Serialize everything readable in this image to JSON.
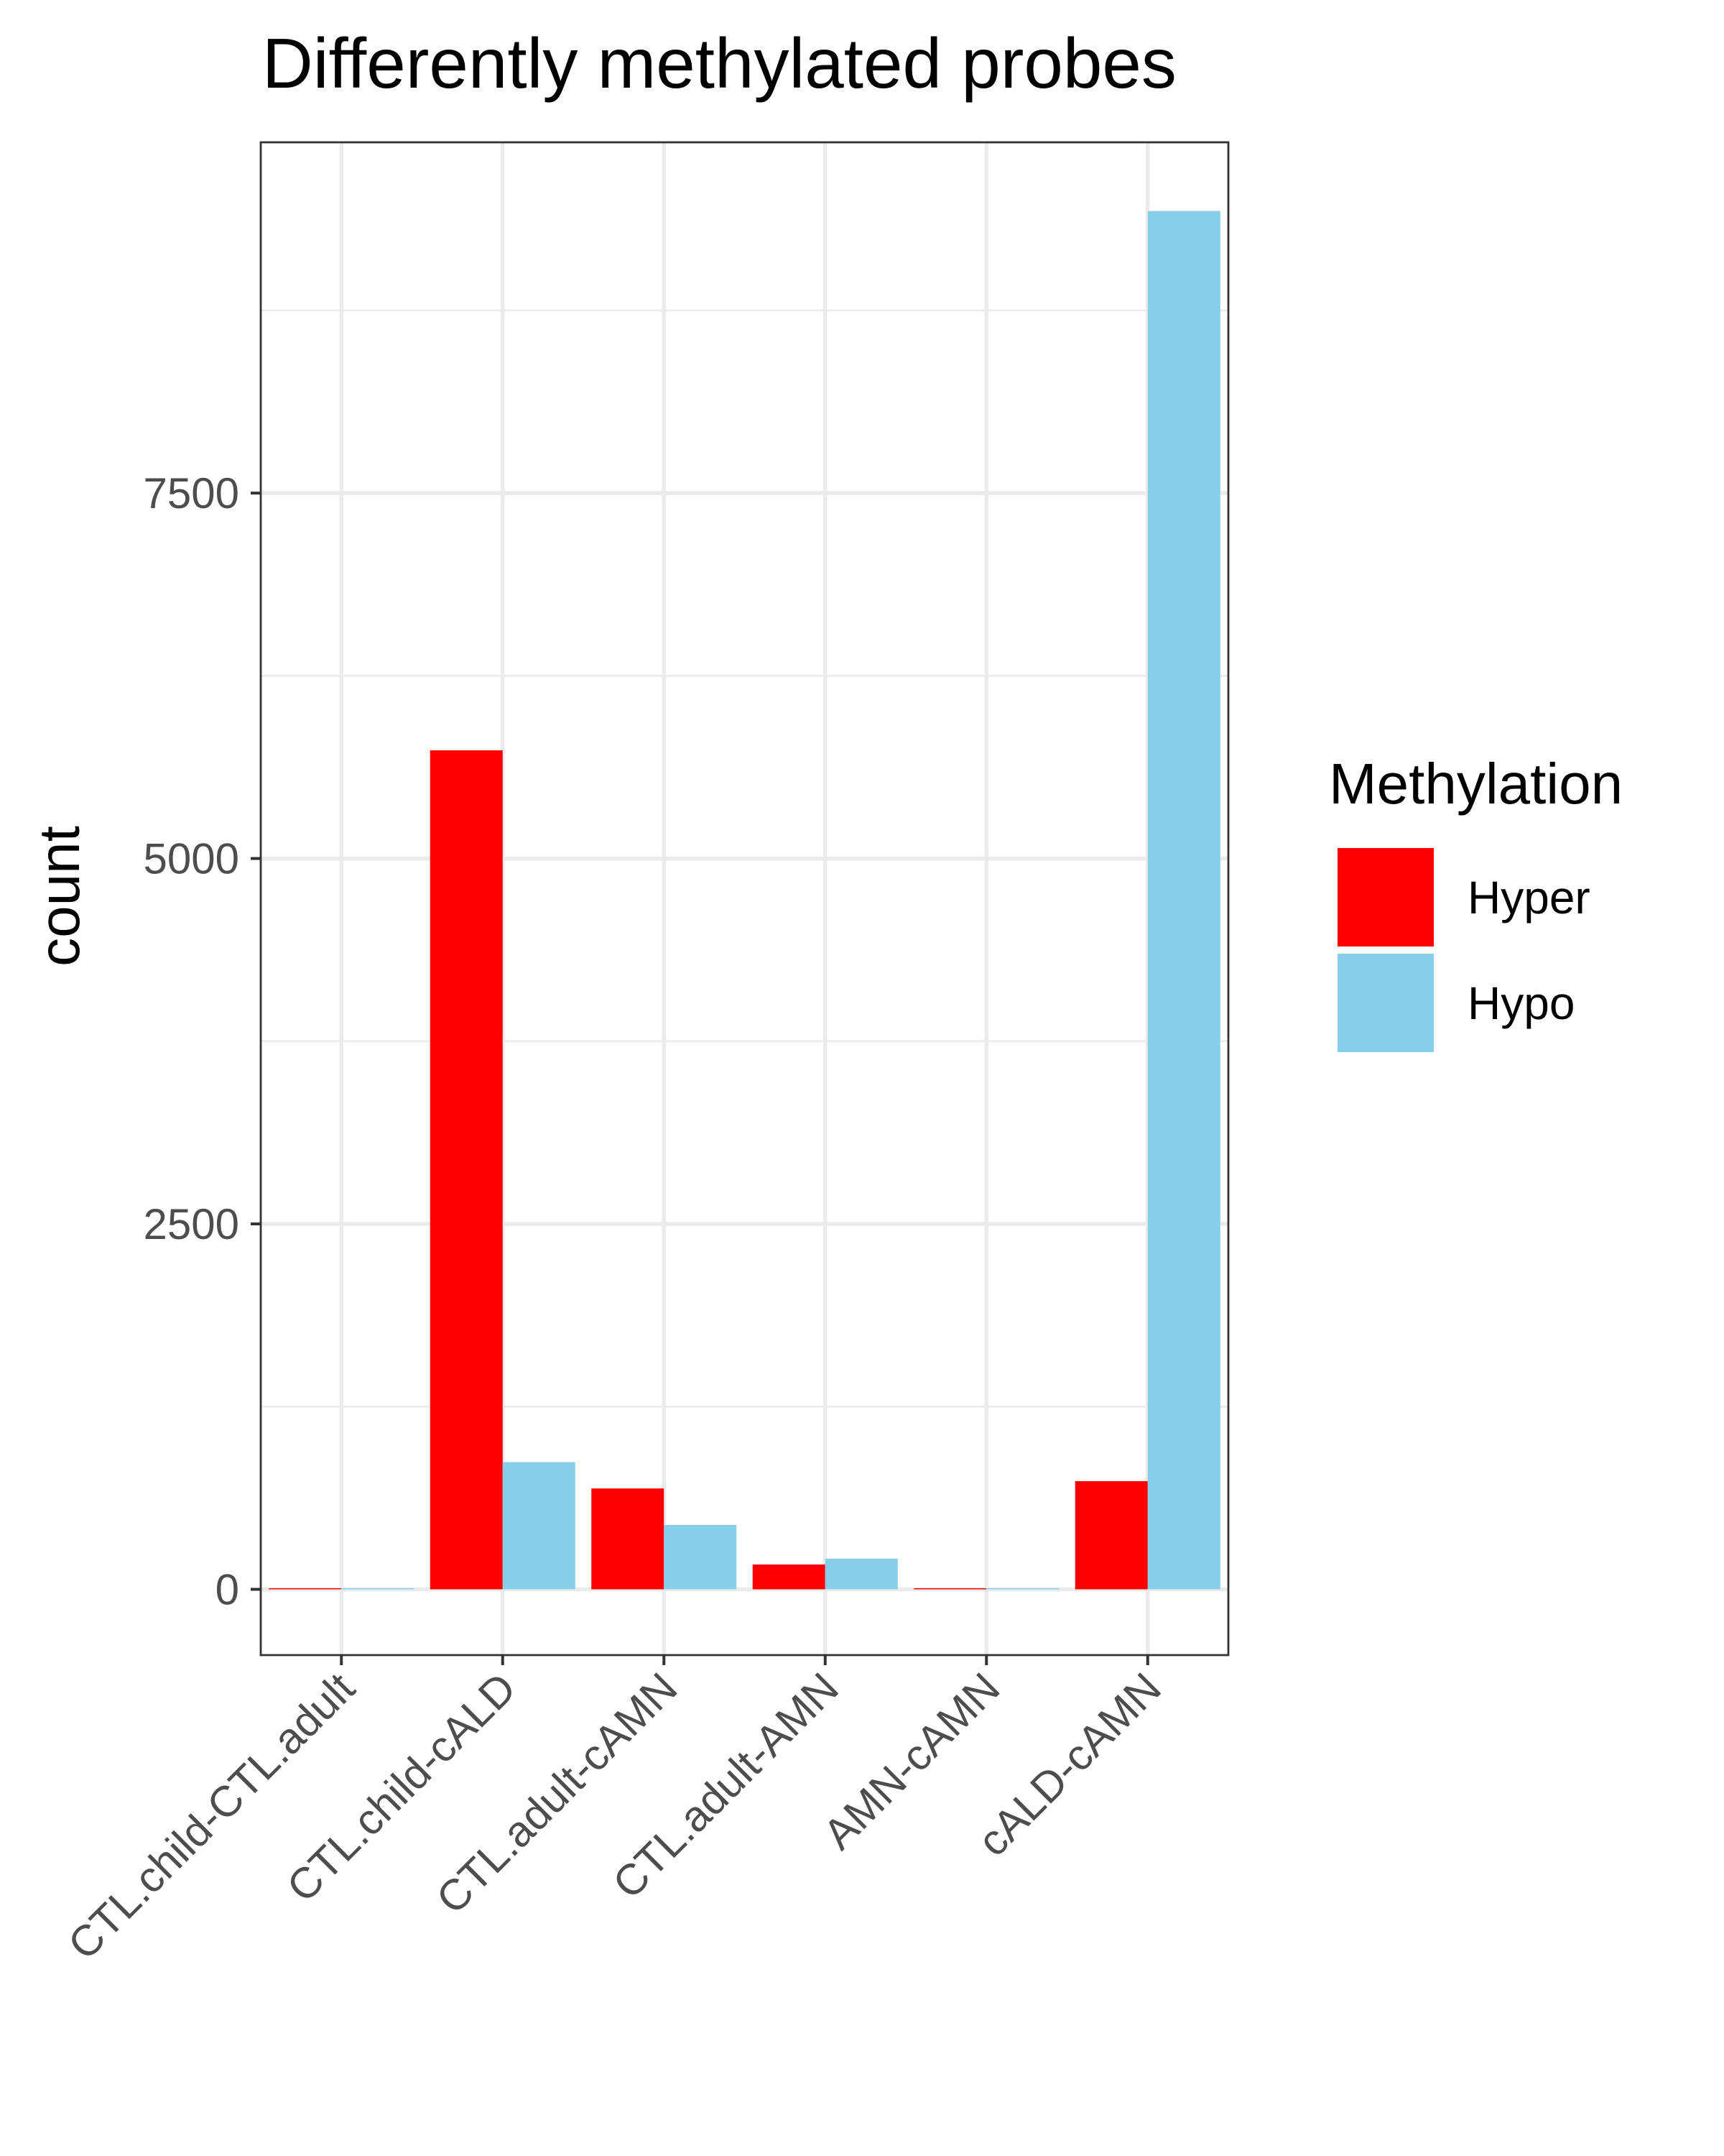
{
  "chart_data": {
    "type": "bar",
    "title": "Differently methylated probes",
    "xlabel": "",
    "ylabel": "count",
    "categories": [
      "CTL.child-CTL.adult",
      "CTL.child-cALD",
      "CTL.adult-cAMN",
      "CTL.adult-AMN",
      "AMN-cAMN",
      "cALD-cAMN"
    ],
    "series": [
      {
        "name": "Hyper",
        "color": "#FF0000",
        "values": [
          0,
          5740,
          690,
          170,
          5,
          740
        ]
      },
      {
        "name": "Hypo",
        "color": "#87CEEB",
        "values": [
          5,
          870,
          440,
          210,
          0,
          9430
        ]
      }
    ],
    "y_ticks": [
      "0",
      "2500",
      "5000",
      "7500"
    ],
    "ylim": [
      -450,
      9900
    ],
    "grid": true,
    "legend": {
      "title": "Methylation",
      "position": "right"
    }
  }
}
